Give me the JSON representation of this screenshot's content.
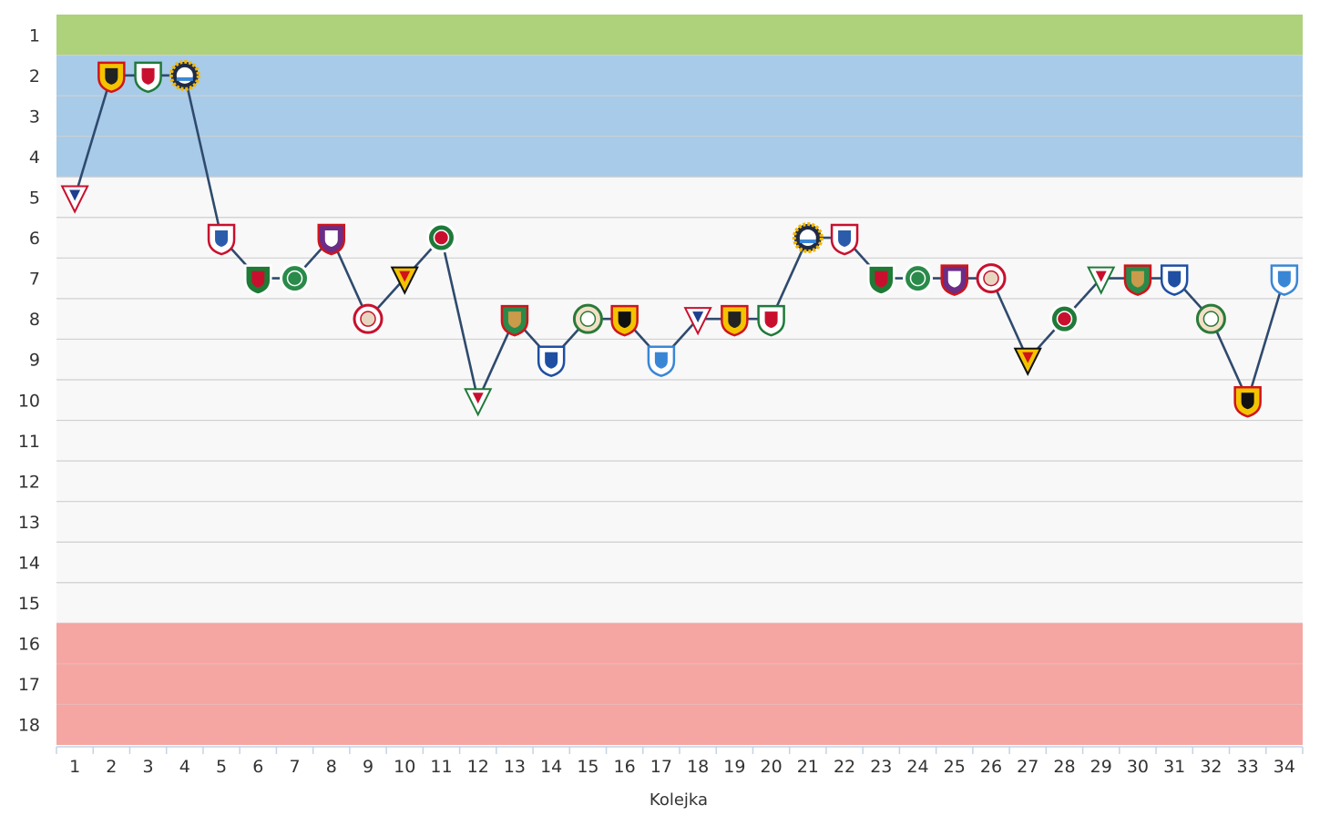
{
  "chart_data": {
    "type": "line",
    "title": "",
    "xlabel": "Kolejka",
    "ylabel": "",
    "x": [
      1,
      2,
      3,
      4,
      5,
      6,
      7,
      8,
      9,
      10,
      11,
      12,
      13,
      14,
      15,
      16,
      17,
      18,
      19,
      20,
      21,
      22,
      23,
      24,
      25,
      26,
      27,
      28,
      29,
      30,
      31,
      32,
      33,
      34
    ],
    "values": [
      5,
      2,
      2,
      2,
      6,
      7,
      7,
      6,
      8,
      7,
      6,
      10,
      8,
      9,
      8,
      8,
      9,
      8,
      8,
      8,
      6,
      6,
      7,
      7,
      7,
      7,
      9,
      8,
      7,
      7,
      7,
      8,
      10,
      7
    ],
    "xlim": [
      1,
      34
    ],
    "ylim": [
      1,
      18
    ],
    "y_inverted": true,
    "y_ticks": [
      "1",
      "2",
      "3",
      "4",
      "5",
      "6",
      "7",
      "8",
      "9",
      "10",
      "11",
      "12",
      "13",
      "14",
      "15",
      "16",
      "17",
      "18"
    ],
    "x_ticks": [
      "1",
      "2",
      "3",
      "4",
      "5",
      "6",
      "7",
      "8",
      "9",
      "10",
      "11",
      "12",
      "13",
      "14",
      "15",
      "16",
      "17",
      "18",
      "19",
      "20",
      "21",
      "22",
      "23",
      "24",
      "25",
      "26",
      "27",
      "28",
      "29",
      "30",
      "31",
      "32",
      "33",
      "34"
    ],
    "bands": [
      {
        "from": 1,
        "to": 1,
        "color": "#aed17b"
      },
      {
        "from": 2,
        "to": 4,
        "color": "#a7cbe8"
      },
      {
        "from": 5,
        "to": 15,
        "color": "#f8f8f8"
      },
      {
        "from": 16,
        "to": 18,
        "color": "#f5a6a2"
      }
    ],
    "grid": true,
    "legend": "none",
    "line_color": "#2f4a6e",
    "opponent_badges": [
      {
        "colors": [
          "#ffffff",
          "#c8102e",
          "#1e3f8f"
        ],
        "shape": "pennant"
      },
      {
        "colors": [
          "#f4c300",
          "#d0141b",
          "#222222"
        ],
        "shape": "shield"
      },
      {
        "colors": [
          "#ffffff",
          "#1f7a3a",
          "#c8102e"
        ],
        "shape": "shield"
      },
      {
        "colors": [
          "#1f2a44",
          "#f2b700",
          "#ffffff"
        ],
        "shape": "gear"
      },
      {
        "colors": [
          "#ffffff",
          "#c8102e",
          "#2a5cab"
        ],
        "shape": "shield"
      },
      {
        "colors": [
          "#1e7a35",
          "#ffffff",
          "#c8102e"
        ],
        "shape": "shield"
      },
      {
        "colors": [
          "#2a8a4a",
          "#ffffff",
          "#2a8a4a"
        ],
        "shape": "circle"
      },
      {
        "colors": [
          "#6b2d86",
          "#d0141b",
          "#ffffff"
        ],
        "shape": "shield"
      },
      {
        "colors": [
          "#ffffff",
          "#c8102e",
          "#e7d7c1"
        ],
        "shape": "circle"
      },
      {
        "colors": [
          "#f4c300",
          "#111111",
          "#d0141b"
        ],
        "shape": "pennant"
      },
      {
        "colors": [
          "#1f7a3a",
          "#ffffff",
          "#c8102e"
        ],
        "shape": "circle"
      },
      {
        "colors": [
          "#ffffff",
          "#1f7a3a",
          "#c8102e"
        ],
        "shape": "pennant"
      },
      {
        "colors": [
          "#2a8a4a",
          "#d0141b",
          "#c99b4a"
        ],
        "shape": "shield"
      },
      {
        "colors": [
          "#ffffff",
          "#1e4fa3",
          "#1e4fa3"
        ],
        "shape": "shield"
      },
      {
        "colors": [
          "#f3e0c6",
          "#2a7a3a",
          "#ffffff"
        ],
        "shape": "circle"
      },
      {
        "colors": [
          "#f4c300",
          "#d0141b",
          "#111111"
        ],
        "shape": "shield"
      },
      {
        "colors": [
          "#ffffff",
          "#3a86d6",
          "#3a86d6"
        ],
        "shape": "shield"
      },
      {
        "colors": [
          "#ffffff",
          "#c8102e",
          "#1e3f8f"
        ],
        "shape": "pennant"
      },
      {
        "colors": [
          "#f4c300",
          "#d0141b",
          "#222222"
        ],
        "shape": "shield"
      },
      {
        "colors": [
          "#ffffff",
          "#1f7a3a",
          "#c8102e"
        ],
        "shape": "shield"
      },
      {
        "colors": [
          "#1f2a44",
          "#f2b700",
          "#ffffff"
        ],
        "shape": "gear"
      },
      {
        "colors": [
          "#ffffff",
          "#c8102e",
          "#2a5cab"
        ],
        "shape": "shield"
      },
      {
        "colors": [
          "#1e7a35",
          "#ffffff",
          "#c8102e"
        ],
        "shape": "shield"
      },
      {
        "colors": [
          "#2a8a4a",
          "#ffffff",
          "#2a8a4a"
        ],
        "shape": "circle"
      },
      {
        "colors": [
          "#6b2d86",
          "#d0141b",
          "#ffffff"
        ],
        "shape": "shield"
      },
      {
        "colors": [
          "#ffffff",
          "#c8102e",
          "#e7d7c1"
        ],
        "shape": "circle"
      },
      {
        "colors": [
          "#f4c300",
          "#111111",
          "#d0141b"
        ],
        "shape": "pennant"
      },
      {
        "colors": [
          "#1f7a3a",
          "#ffffff",
          "#c8102e"
        ],
        "shape": "circle"
      },
      {
        "colors": [
          "#ffffff",
          "#1f7a3a",
          "#c8102e"
        ],
        "shape": "pennant"
      },
      {
        "colors": [
          "#2a8a4a",
          "#d0141b",
          "#c99b4a"
        ],
        "shape": "shield"
      },
      {
        "colors": [
          "#ffffff",
          "#1e4fa3",
          "#1e4fa3"
        ],
        "shape": "shield"
      },
      {
        "colors": [
          "#f3e0c6",
          "#2a7a3a",
          "#ffffff"
        ],
        "shape": "circle"
      },
      {
        "colors": [
          "#f4c300",
          "#d0141b",
          "#111111"
        ],
        "shape": "shield"
      },
      {
        "colors": [
          "#ffffff",
          "#3a86d6",
          "#3a86d6"
        ],
        "shape": "shield"
      }
    ]
  }
}
